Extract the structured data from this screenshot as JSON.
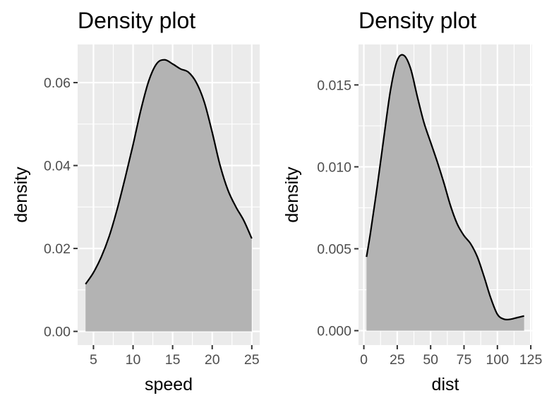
{
  "chart_data": [
    {
      "type": "area",
      "title": "Density plot",
      "xlabel": "speed",
      "ylabel": "density",
      "xlim": [
        3.0,
        26.0
      ],
      "ylim": [
        -0.0033,
        0.0692
      ],
      "x_ticks": [
        5,
        10,
        15,
        20,
        25
      ],
      "x_tick_labels": [
        "5",
        "10",
        "15",
        "20",
        "25"
      ],
      "y_ticks": [
        0.0,
        0.02,
        0.04,
        0.06
      ],
      "y_tick_labels": [
        "0.00",
        "0.02",
        "0.04",
        "0.06"
      ],
      "grid": true,
      "legend": "none",
      "colors": {
        "panel": "#ebebeb",
        "grid": "#ffffff",
        "fill": "#b3b3b3",
        "line": "#000000",
        "tick": "#333333"
      },
      "x": [
        4,
        5,
        6,
        7,
        8,
        9,
        10,
        11,
        12,
        13,
        14,
        15,
        16,
        17,
        18,
        19,
        20,
        21,
        22,
        23,
        24,
        25
      ],
      "y": [
        0.0114,
        0.0142,
        0.018,
        0.023,
        0.0295,
        0.037,
        0.045,
        0.0535,
        0.0605,
        0.0646,
        0.0655,
        0.0645,
        0.0633,
        0.0625,
        0.06,
        0.0553,
        0.048,
        0.04,
        0.034,
        0.03,
        0.0267,
        0.0224
      ]
    },
    {
      "type": "area",
      "title": "Density plot",
      "xlabel": "dist",
      "ylabel": "density",
      "xlim": [
        -4.0,
        126.0
      ],
      "ylim": [
        -0.00088,
        0.01747
      ],
      "x_ticks": [
        0,
        25,
        50,
        75,
        100,
        125
      ],
      "x_tick_labels": [
        "0",
        "25",
        "50",
        "75",
        "100",
        "125"
      ],
      "y_ticks": [
        0.0,
        0.005,
        0.01,
        0.015
      ],
      "y_tick_labels": [
        "0.000",
        "0.005",
        "0.010",
        "0.015"
      ],
      "grid": true,
      "legend": "none",
      "colors": {
        "panel": "#ebebeb",
        "grid": "#ffffff",
        "fill": "#b3b3b3",
        "line": "#000000",
        "tick": "#333333"
      },
      "x": [
        2,
        5,
        10,
        15,
        20,
        25,
        30,
        35,
        40,
        45,
        50,
        55,
        60,
        65,
        70,
        75,
        80,
        85,
        90,
        95,
        100,
        105,
        110,
        115,
        120
      ],
      "y": [
        0.0045,
        0.006,
        0.0088,
        0.0118,
        0.0147,
        0.0165,
        0.0168,
        0.016,
        0.0143,
        0.0127,
        0.0115,
        0.0103,
        0.009,
        0.0076,
        0.0065,
        0.0058,
        0.0053,
        0.0045,
        0.0033,
        0.002,
        0.001,
        0.0007,
        0.0007,
        0.0008,
        0.0009
      ]
    }
  ]
}
